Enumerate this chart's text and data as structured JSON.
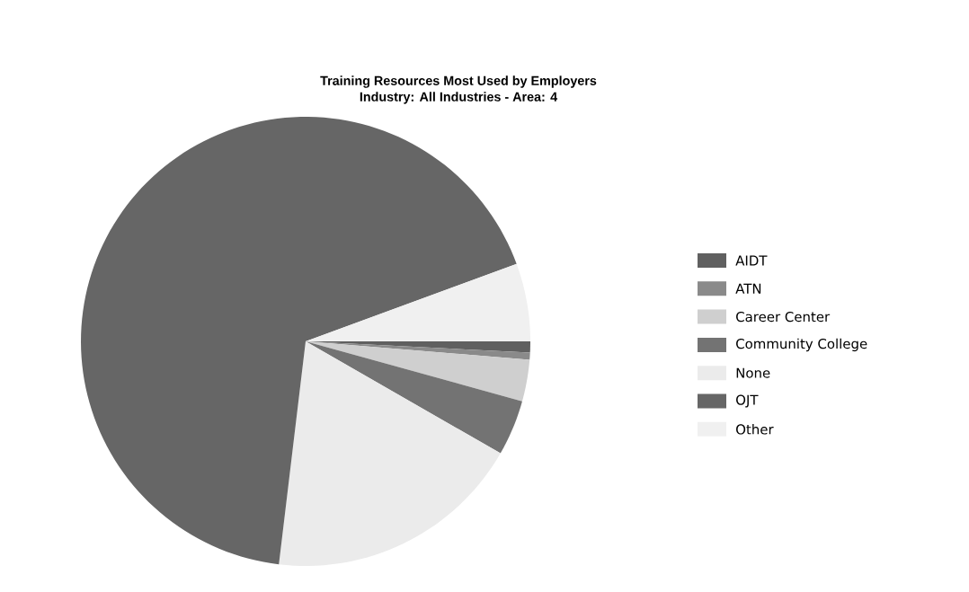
{
  "chart_data": {
    "type": "pie",
    "title": "Training Resources Most Used by Employers",
    "subtitle": "Industry: All Industries   -   Area: 4",
    "categories": [
      "AIDT",
      "ATN",
      "Career Center",
      "Community College",
      "None",
      "OJT",
      "Other"
    ],
    "values": [
      0.8,
      0.5,
      3,
      4,
      18.6,
      67.5,
      5.6
    ],
    "colors": [
      "#606060",
      "#8a8a8a",
      "#cfcfcf",
      "#737373",
      "#ebebeb",
      "#666666",
      "#f0f0f0"
    ],
    "legend": "right"
  }
}
